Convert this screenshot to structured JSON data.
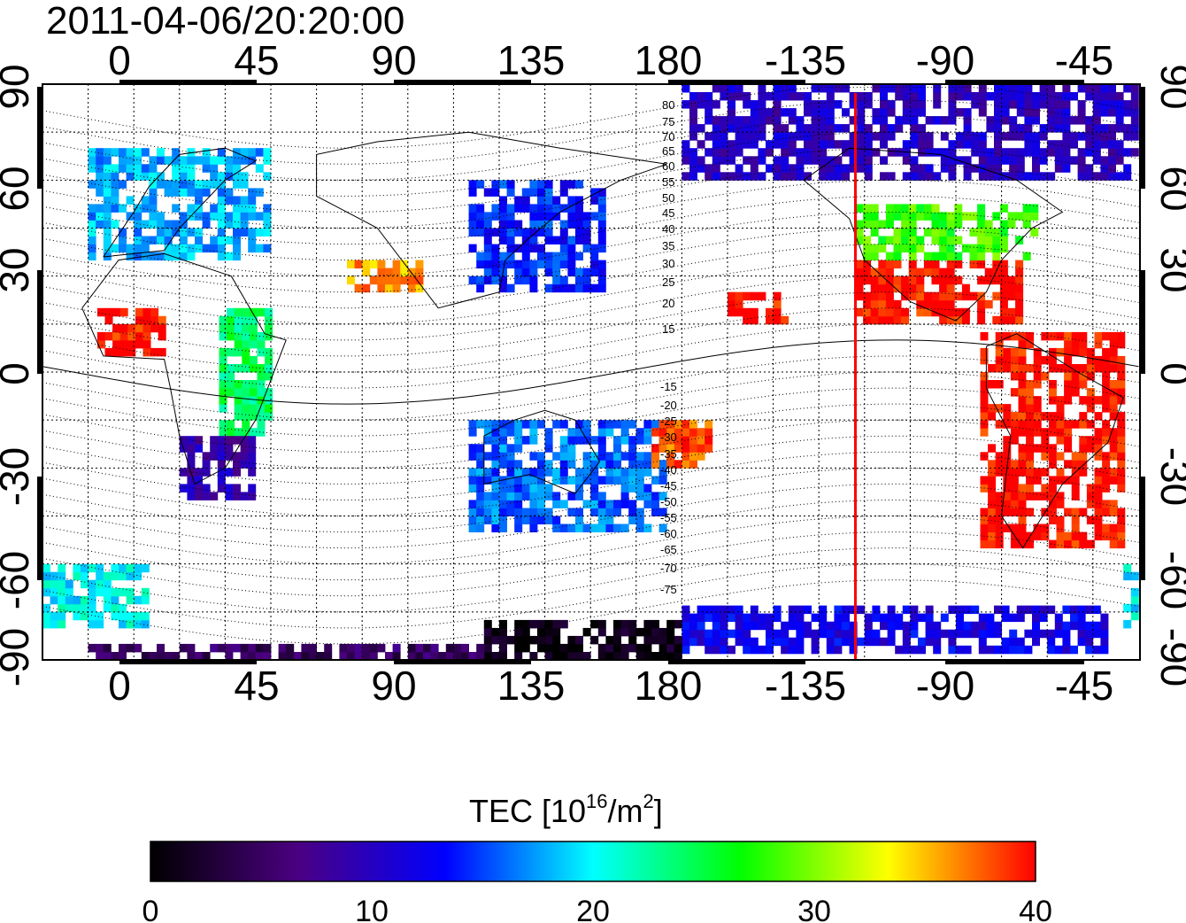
{
  "timestamp": "2011-04-06/20:20:00",
  "map": {
    "x_ticks": [
      "0",
      "45",
      "90",
      "135",
      "180",
      "-135",
      "-90",
      "-45"
    ],
    "y_ticks": [
      "90",
      "60",
      "30",
      "0",
      "-30",
      "-60",
      "-90"
    ],
    "contour_labels_north": [
      "80",
      "75",
      "70",
      "65",
      "60",
      "55",
      "50",
      "45",
      "40",
      "35",
      "30",
      "25",
      "20",
      "15"
    ],
    "contour_labels_south": [
      "-15",
      "-20",
      "-25",
      "-30",
      "-35",
      "-40",
      "-45",
      "-50",
      "-55",
      "-60",
      "-65",
      "-70",
      "-75"
    ],
    "marker_line_longitude": -123,
    "marker_line_color": "#ff0000",
    "tec_regions": [
      {
        "name": "north-america-high",
        "lon": [
          -123,
          -70
        ],
        "lat": [
          15,
          35
        ],
        "tec": 40
      },
      {
        "name": "south-america",
        "lon": [
          -82,
          -35
        ],
        "lat": [
          -55,
          12
        ],
        "tec": 40
      },
      {
        "name": "north-america-mid",
        "lon": [
          -123,
          -65
        ],
        "lat": [
          35,
          52
        ],
        "tec": 28
      },
      {
        "name": "arctic",
        "lon": [
          -180,
          -30
        ],
        "lat": [
          60,
          88
        ],
        "tec": 10
      },
      {
        "name": "europe",
        "lon": [
          -15,
          45
        ],
        "lat": [
          35,
          70
        ],
        "tec": 18
      },
      {
        "name": "africa-north",
        "lon": [
          -12,
          10
        ],
        "lat": [
          5,
          20
        ],
        "tec": 40
      },
      {
        "name": "africa-east",
        "lon": [
          28,
          45
        ],
        "lat": [
          -20,
          20
        ],
        "tec": 24
      },
      {
        "name": "africa-south",
        "lon": [
          15,
          40
        ],
        "lat": [
          -40,
          -20
        ],
        "tec": 9
      },
      {
        "name": "asia-east",
        "lon": [
          110,
          155
        ],
        "lat": [
          25,
          60
        ],
        "tec": 14
      },
      {
        "name": "india",
        "lon": [
          70,
          95
        ],
        "lat": [
          25,
          35
        ],
        "tec": 36
      },
      {
        "name": "australia",
        "lon": [
          110,
          175
        ],
        "lat": [
          -50,
          -15
        ],
        "tec": 16
      },
      {
        "name": "pacific-south",
        "lon": [
          170,
          190
        ],
        "lat": [
          -30,
          -15
        ],
        "tec": 38
      },
      {
        "name": "pacific-north",
        "lon": [
          195,
          215
        ],
        "lat": [
          15,
          25
        ],
        "tec": 40
      },
      {
        "name": "antarctic-east",
        "lon": [
          -35,
          5
        ],
        "lat": [
          -80,
          -60
        ],
        "tec": 20
      },
      {
        "name": "antarctic-west",
        "lon": [
          -180,
          -40
        ],
        "lat": [
          -88,
          -75
        ],
        "tec": 12
      },
      {
        "name": "antarctic-dark",
        "lon": [
          115,
          180
        ],
        "lat": [
          -90,
          -78
        ],
        "tec": 1
      },
      {
        "name": "antarctic-band",
        "lon": [
          -15,
          115
        ],
        "lat": [
          -90,
          -85
        ],
        "tec": 5
      }
    ]
  },
  "colorbar": {
    "title": "TEC  [10",
    "title_sup": "16",
    "title_mid": "/m",
    "title_sup2": "2",
    "title_end": "]",
    "min": 0,
    "max": 40,
    "ticks": [
      "0",
      "10",
      "20",
      "30",
      "40"
    ],
    "colors": [
      "#000000",
      "#4b0082",
      "#0000ff",
      "#00ffff",
      "#00ff00",
      "#ffff00",
      "#ff0000"
    ]
  }
}
